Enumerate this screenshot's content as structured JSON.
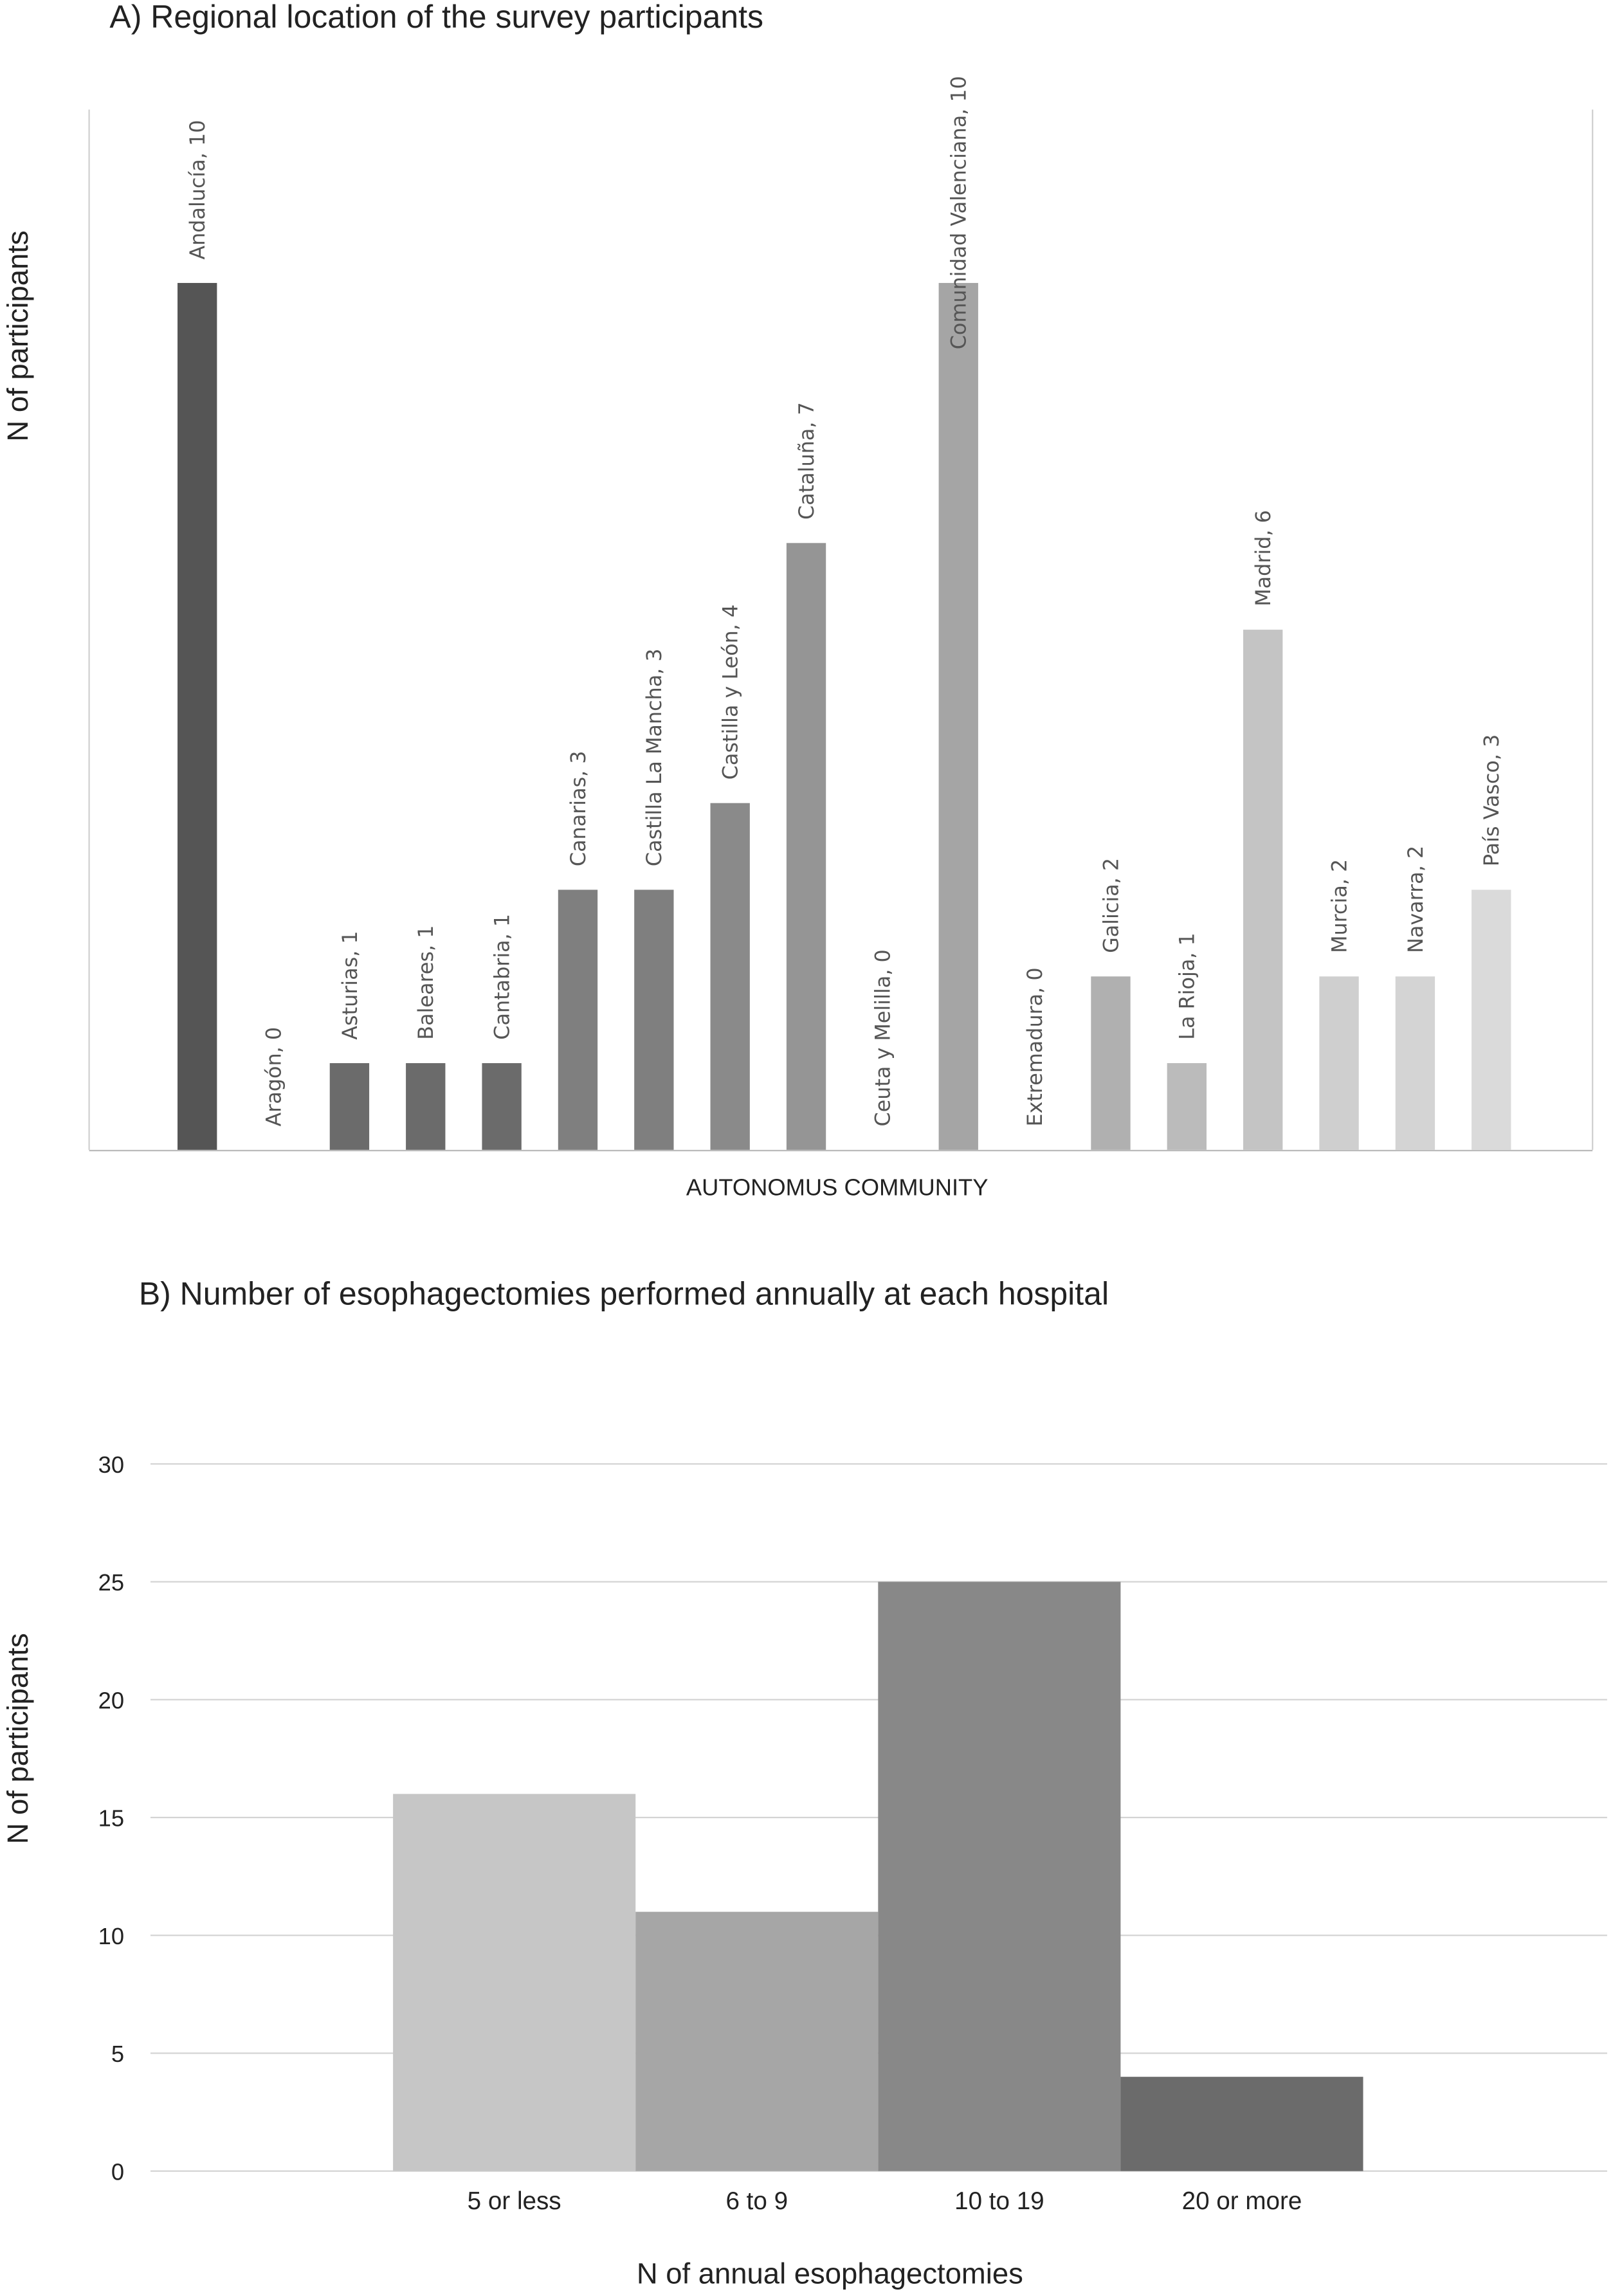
{
  "chart_data": [
    {
      "type": "bar",
      "title": "A) Regional location of the survey participants",
      "y_label": "N of participants",
      "x_label": "AUTONOMUS COMMUNITY",
      "values": [
        10,
        0,
        1,
        1,
        1,
        3,
        3,
        4,
        7,
        0,
        10,
        0,
        2,
        1,
        6,
        2,
        2,
        3
      ],
      "value_labels": [
        "Andalucía, 10",
        "Aragón, 0",
        "Asturias, 1",
        "Baleares, 1",
        "Cantabria, 1",
        "Canarias, 3",
        "Castilla La Mancha, 3",
        "Castilla y León, 4",
        "Cataluña, 7",
        "Ceuta y Melilla, 0",
        "Comunidad Valenciana, 10",
        "Extremadura, 0",
        "Galicia, 2",
        "La Rioja, 1",
        "Madrid, 6",
        "Murcia, 2",
        "Navarra, 2",
        "País Vasco, 3"
      ],
      "colors": [
        "#555555",
        "#606060",
        "#6b6b6b",
        "#6b6b6b",
        "#6b6b6b",
        "#7f7f7f",
        "#7f7f7f",
        "#8a8a8a",
        "#959595",
        "#a0a0a0",
        "#a5a5a5",
        "#aaaaaa",
        "#b0b0b0",
        "#bbbbbb",
        "#c4c4c4",
        "#cfcfcf",
        "#d4d4d4",
        "#dadada"
      ],
      "ylim": [
        0,
        12
      ]
    },
    {
      "type": "bar",
      "title": "B) Number of esophagectomies performed annually at each hospital",
      "y_label": "N of participants",
      "x_label": "N of annual esophagectomies",
      "categories": [
        "5 or less",
        "6 to 9",
        "10 to 19",
        "20 or more"
      ],
      "values": [
        16,
        11,
        25,
        4
      ],
      "colors": [
        "#c6c6c6",
        "#a6a6a6",
        "#888888",
        "#6b6b6b"
      ],
      "ylim": [
        0,
        30
      ],
      "yticks": [
        0,
        5,
        10,
        15,
        20,
        25,
        30
      ],
      "grid": true
    }
  ]
}
